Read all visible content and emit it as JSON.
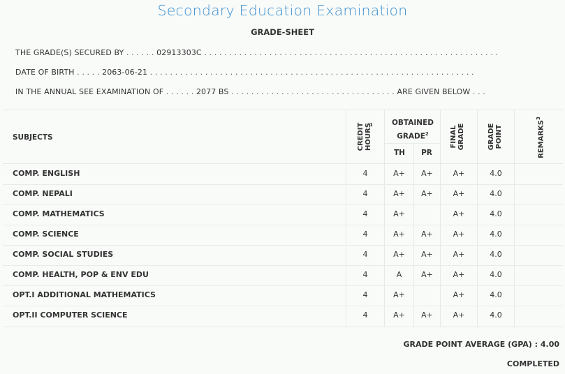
{
  "header": {
    "title": "Secondary Education Examination",
    "subtitle": "GRADE-SHEET"
  },
  "student": {
    "secured_by_label": "THE GRADE(S) SECURED BY",
    "symbol_no": "02913303C",
    "dob_label": "DATE OF BIRTH",
    "dob": "2063-06-21",
    "exam_label": "IN THE ANNUAL SEE EXAMINATION OF",
    "exam_year": "2077 BS",
    "given_below": "ARE GIVEN BELOW"
  },
  "table": {
    "headers": {
      "subjects": "SUBJECTS",
      "credit_hours": "CREDIT HOURS",
      "credit_sup": "1",
      "obtained_grade": "OBTAINED",
      "obtained_grade_2": "GRADE",
      "obtained_sup": "2",
      "th": "TH",
      "pr": "PR",
      "final_grade_1": "FINAL",
      "final_grade_2": "GRADE",
      "grade_point_1": "GRADE",
      "grade_point_2": "POINT",
      "remarks": "REMARKS",
      "remarks_sup": "3"
    },
    "rows": [
      {
        "subject": "COMP. ENGLISH",
        "credit": "4",
        "th": "A+",
        "pr": "A+",
        "final": "A+",
        "gp": "4.0",
        "remarks": ""
      },
      {
        "subject": "COMP. NEPALI",
        "credit": "4",
        "th": "A+",
        "pr": "A+",
        "final": "A+",
        "gp": "4.0",
        "remarks": ""
      },
      {
        "subject": "COMP. MATHEMATICS",
        "credit": "4",
        "th": "A+",
        "pr": "",
        "final": "A+",
        "gp": "4.0",
        "remarks": ""
      },
      {
        "subject": "COMP. SCIENCE",
        "credit": "4",
        "th": "A+",
        "pr": "A+",
        "final": "A+",
        "gp": "4.0",
        "remarks": ""
      },
      {
        "subject": "COMP. SOCIAL STUDIES",
        "credit": "4",
        "th": "A+",
        "pr": "A+",
        "final": "A+",
        "gp": "4.0",
        "remarks": ""
      },
      {
        "subject": "COMP. HEALTH, POP & ENV EDU",
        "credit": "4",
        "th": "A",
        "pr": "A+",
        "final": "A+",
        "gp": "4.0",
        "remarks": ""
      },
      {
        "subject": "OPT.I ADDITIONAL MATHEMATICS",
        "credit": "4",
        "th": "A+",
        "pr": "",
        "final": "A+",
        "gp": "4.0",
        "remarks": ""
      },
      {
        "subject": "OPT.II COMPUTER SCIENCE",
        "credit": "4",
        "th": "A+",
        "pr": "A+",
        "final": "A+",
        "gp": "4.0",
        "remarks": ""
      }
    ]
  },
  "summary": {
    "gpa_label": "GRADE POINT AVERAGE (GPA) :",
    "gpa": "4.00",
    "status": "COMPLETED"
  }
}
